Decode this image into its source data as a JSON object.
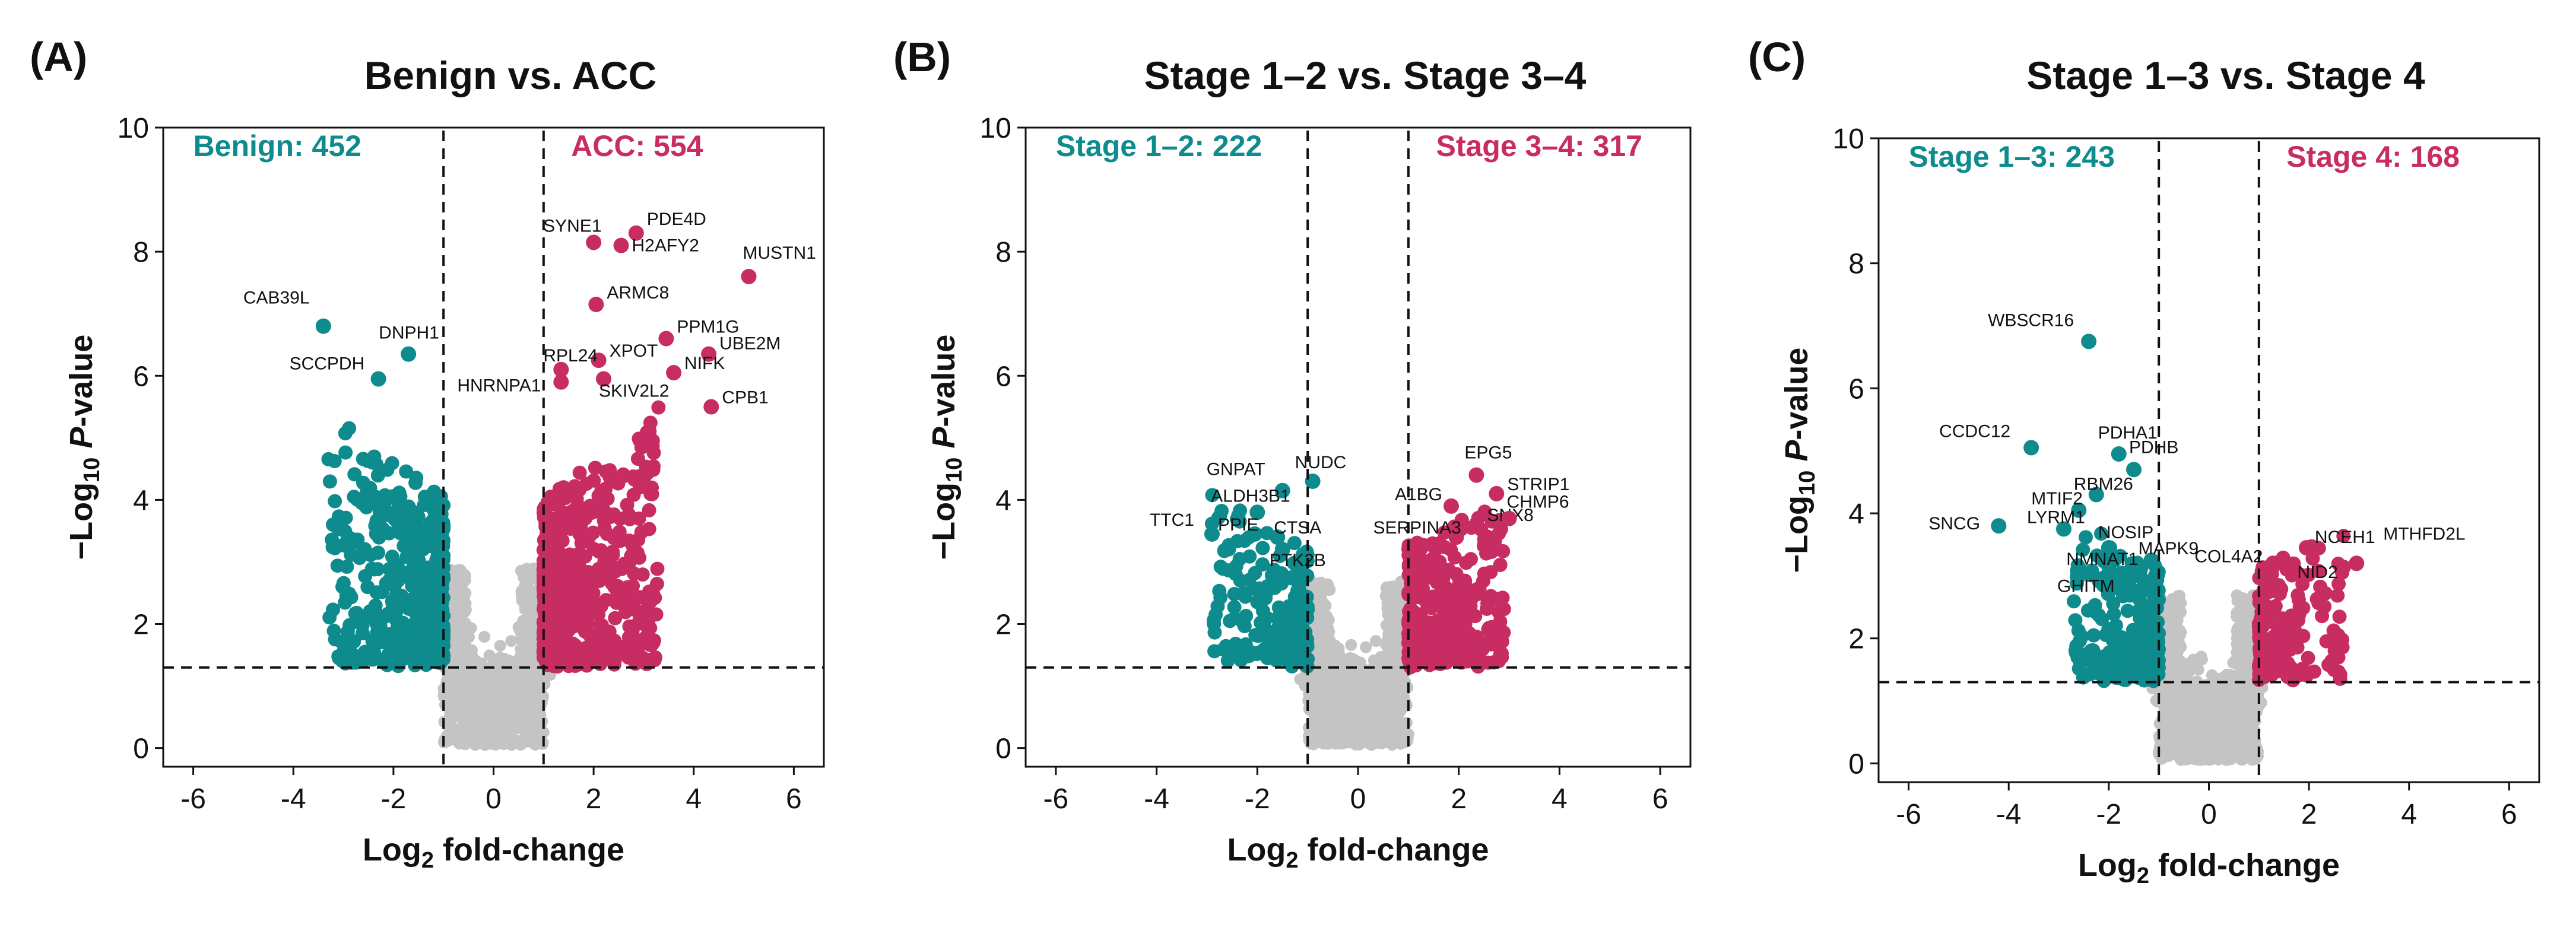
{
  "chart_data": [
    {
      "panel_label": "(A)",
      "type": "scatter",
      "title": "Benign vs. ACC",
      "xlabel_main": "Log",
      "xlabel_sub": "2",
      "xlabel_rest": " fold-change",
      "ylabel_pre": "−Log",
      "ylabel_sub": "10",
      "ylabel_italic": "P",
      "ylabel_rest": "-value",
      "xlim": [
        -6.6,
        6.6
      ],
      "ylim": [
        -0.3,
        10
      ],
      "xticks": [
        -6,
        -4,
        -2,
        0,
        2,
        4,
        6
      ],
      "yticks": [
        0,
        2,
        4,
        6,
        8,
        10
      ],
      "fc_thresholds": [
        -1,
        1
      ],
      "p_threshold": 1.3,
      "left_count_label": "Benign: 452",
      "right_count_label": "ACC: 554",
      "colors": {
        "down": "#0e8b8d",
        "up": "#c72c63",
        "ns": "#c4c4c4"
      },
      "labeled_points": [
        {
          "gene": "CAB39L",
          "x": -3.4,
          "y": 6.8,
          "group": "down"
        },
        {
          "gene": "DNPH1",
          "x": -1.7,
          "y": 6.35,
          "group": "down"
        },
        {
          "gene": "SCCPDH",
          "x": -2.3,
          "y": 5.95,
          "group": "down"
        },
        {
          "gene": "SYNE1",
          "x": 2.0,
          "y": 8.15,
          "group": "up"
        },
        {
          "gene": "PDE4D",
          "x": 2.85,
          "y": 8.3,
          "group": "up"
        },
        {
          "gene": "H2AFY2",
          "x": 2.55,
          "y": 8.1,
          "group": "up"
        },
        {
          "gene": "MUSTN1",
          "x": 5.1,
          "y": 7.6,
          "group": "up"
        },
        {
          "gene": "ARMC8",
          "x": 2.05,
          "y": 7.15,
          "group": "up"
        },
        {
          "gene": "PPM1G",
          "x": 3.45,
          "y": 6.6,
          "group": "up"
        },
        {
          "gene": "UBE2M",
          "x": 4.3,
          "y": 6.35,
          "group": "up"
        },
        {
          "gene": "XPOT",
          "x": 2.1,
          "y": 6.25,
          "group": "up"
        },
        {
          "gene": "RPL24",
          "x": 1.35,
          "y": 6.1,
          "group": "up"
        },
        {
          "gene": "HNRNPA1",
          "x": 1.35,
          "y": 5.9,
          "group": "up"
        },
        {
          "gene": "SKIV2L2",
          "x": 2.2,
          "y": 5.95,
          "group": "up"
        },
        {
          "gene": "NIFK",
          "x": 3.6,
          "y": 6.05,
          "group": "up"
        },
        {
          "gene": "CPB1",
          "x": 4.35,
          "y": 5.5,
          "group": "up"
        }
      ],
      "sig_down": 452,
      "sig_up": 554
    },
    {
      "panel_label": "(B)",
      "type": "scatter",
      "title": "Stage 1–2 vs. Stage 3–4",
      "xlabel_main": "Log",
      "xlabel_sub": "2",
      "xlabel_rest": " fold-change",
      "ylabel_pre": "−Log",
      "ylabel_sub": "10",
      "ylabel_italic": "P",
      "ylabel_rest": "-value",
      "xlim": [
        -6.6,
        6.6
      ],
      "ylim": [
        -0.3,
        10
      ],
      "xticks": [
        -6,
        -4,
        -2,
        0,
        2,
        4,
        6
      ],
      "yticks": [
        0,
        2,
        4,
        6,
        8,
        10
      ],
      "fc_thresholds": [
        -1,
        1
      ],
      "p_threshold": 1.3,
      "left_count_label": "Stage 1–2: 222",
      "right_count_label": "Stage 3–4: 317",
      "colors": {
        "down": "#0e8b8d",
        "up": "#c72c63",
        "ns": "#c4c4c4"
      },
      "labeled_points": [
        {
          "gene": "NUDC",
          "x": -0.9,
          "y": 4.3,
          "group": "down"
        },
        {
          "gene": "GNPAT",
          "x": -1.5,
          "y": 4.15,
          "group": "down"
        },
        {
          "gene": "TTC1",
          "x": -2.9,
          "y": 3.45,
          "group": "down"
        },
        {
          "gene": "ALDH3B1",
          "x": -2.0,
          "y": 3.8,
          "group": "down"
        },
        {
          "gene": "PPIE",
          "x": -2.05,
          "y": 3.45,
          "group": "down"
        },
        {
          "gene": "CTSA",
          "x": -1.6,
          "y": 3.4,
          "group": "down"
        },
        {
          "gene": "PTK2B",
          "x": -1.5,
          "y": 3.2,
          "group": "down"
        },
        {
          "gene": "EPG5",
          "x": 2.35,
          "y": 4.4,
          "group": "up"
        },
        {
          "gene": "STRIP1",
          "x": 2.75,
          "y": 4.1,
          "group": "up"
        },
        {
          "gene": "A1BG",
          "x": 1.85,
          "y": 3.9,
          "group": "up"
        },
        {
          "gene": "SNX8",
          "x": 2.35,
          "y": 3.6,
          "group": "up"
        },
        {
          "gene": "CHMP6",
          "x": 3.0,
          "y": 3.7,
          "group": "up"
        },
        {
          "gene": "SERPINA3",
          "x": 1.95,
          "y": 3.4,
          "group": "up"
        }
      ],
      "sig_down": 222,
      "sig_up": 317
    },
    {
      "panel_label": "(C)",
      "type": "scatter",
      "title": "Stage 1–3 vs. Stage 4",
      "xlabel_main": "Log",
      "xlabel_sub": "2",
      "xlabel_rest": " fold-change",
      "ylabel_pre": "−Log",
      "ylabel_sub": "10",
      "ylabel_italic": "P",
      "ylabel_rest": "-value",
      "xlim": [
        -6.6,
        6.6
      ],
      "ylim": [
        -0.3,
        10
      ],
      "xticks": [
        -6,
        -4,
        -2,
        0,
        2,
        4,
        6
      ],
      "yticks": [
        0,
        2,
        4,
        6,
        8,
        10
      ],
      "fc_thresholds": [
        -1,
        1
      ],
      "p_threshold": 1.3,
      "left_count_label": "Stage 1–3: 243",
      "right_count_label": "Stage 4: 168",
      "colors": {
        "down": "#0e8b8d",
        "up": "#c72c63",
        "ns": "#c4c4c4"
      },
      "labeled_points": [
        {
          "gene": "WBSCR16",
          "x": -2.4,
          "y": 6.75,
          "group": "down"
        },
        {
          "gene": "CCDC12",
          "x": -3.55,
          "y": 5.05,
          "group": "down"
        },
        {
          "gene": "PDHA1",
          "x": -1.8,
          "y": 4.95,
          "group": "down"
        },
        {
          "gene": "PDHB",
          "x": -1.5,
          "y": 4.7,
          "group": "down"
        },
        {
          "gene": "RBM26",
          "x": -2.25,
          "y": 4.3,
          "group": "down"
        },
        {
          "gene": "MTIF2",
          "x": -2.6,
          "y": 4.05,
          "group": "down"
        },
        {
          "gene": "SNCG",
          "x": -4.2,
          "y": 3.8,
          "group": "down"
        },
        {
          "gene": "LYRM1",
          "x": -2.9,
          "y": 3.75,
          "group": "down"
        },
        {
          "gene": "NOSIP",
          "x": -2.0,
          "y": 3.45,
          "group": "down"
        },
        {
          "gene": "NMNAT1",
          "x": -1.9,
          "y": 3.25,
          "group": "down"
        },
        {
          "gene": "MAPK9",
          "x": -1.15,
          "y": 3.25,
          "group": "down"
        },
        {
          "gene": "GHITM",
          "x": -2.2,
          "y": 2.95,
          "group": "down"
        },
        {
          "gene": "NCEH1",
          "x": 1.95,
          "y": 3.45,
          "group": "up"
        },
        {
          "gene": "COL4A2",
          "x": 1.35,
          "y": 3.2,
          "group": "up"
        },
        {
          "gene": "NID2",
          "x": 1.6,
          "y": 3.1,
          "group": "up"
        },
        {
          "gene": "MTHFD2L",
          "x": 2.95,
          "y": 3.2,
          "group": "up"
        }
      ],
      "sig_down": 243,
      "sig_up": 168
    }
  ]
}
